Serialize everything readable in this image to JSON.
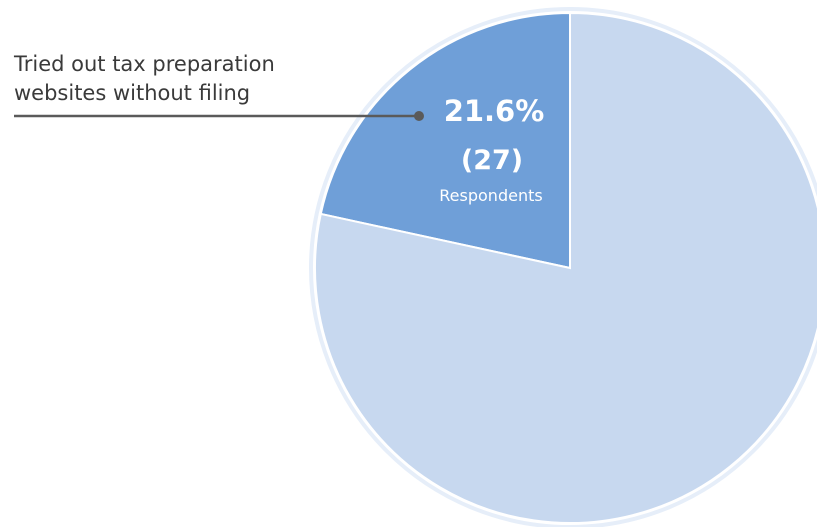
{
  "chart_data": {
    "type": "pie",
    "slices": [
      {
        "label": "Tried out tax preparation websites without filing",
        "value": 21.6,
        "count": 27,
        "color": "#6f9fd8"
      },
      {
        "label": "",
        "value": 78.4,
        "color": "#c7d8ef"
      }
    ],
    "annotation": {
      "label_line1": "Tried out tax preparation",
      "label_line2": "websites without filing",
      "percent": "21.6%",
      "count": "(27)",
      "unit": "Respondents"
    },
    "colors": {
      "highlight": "#6f9fd8",
      "rest": "#c7d8ef",
      "outline": "#e6eef9",
      "leader": "#5a5a5a"
    }
  }
}
